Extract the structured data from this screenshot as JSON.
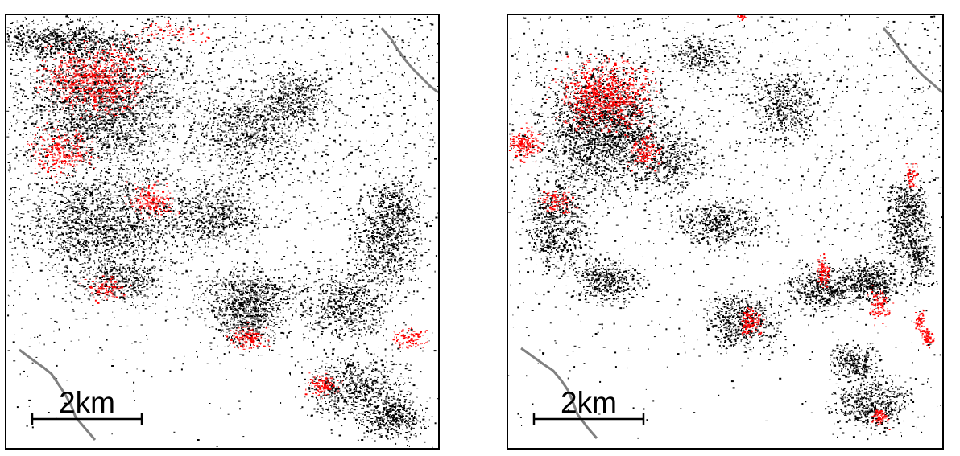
{
  "colors": {
    "background": "#ffffff",
    "frame": "#000000",
    "dots_dark": "#000000",
    "dots_red": "#ff0000",
    "road": "#808080"
  },
  "panels": [
    {
      "id": "left",
      "scale_label": "2km"
    },
    {
      "id": "right",
      "scale_label": "2km"
    }
  ]
}
